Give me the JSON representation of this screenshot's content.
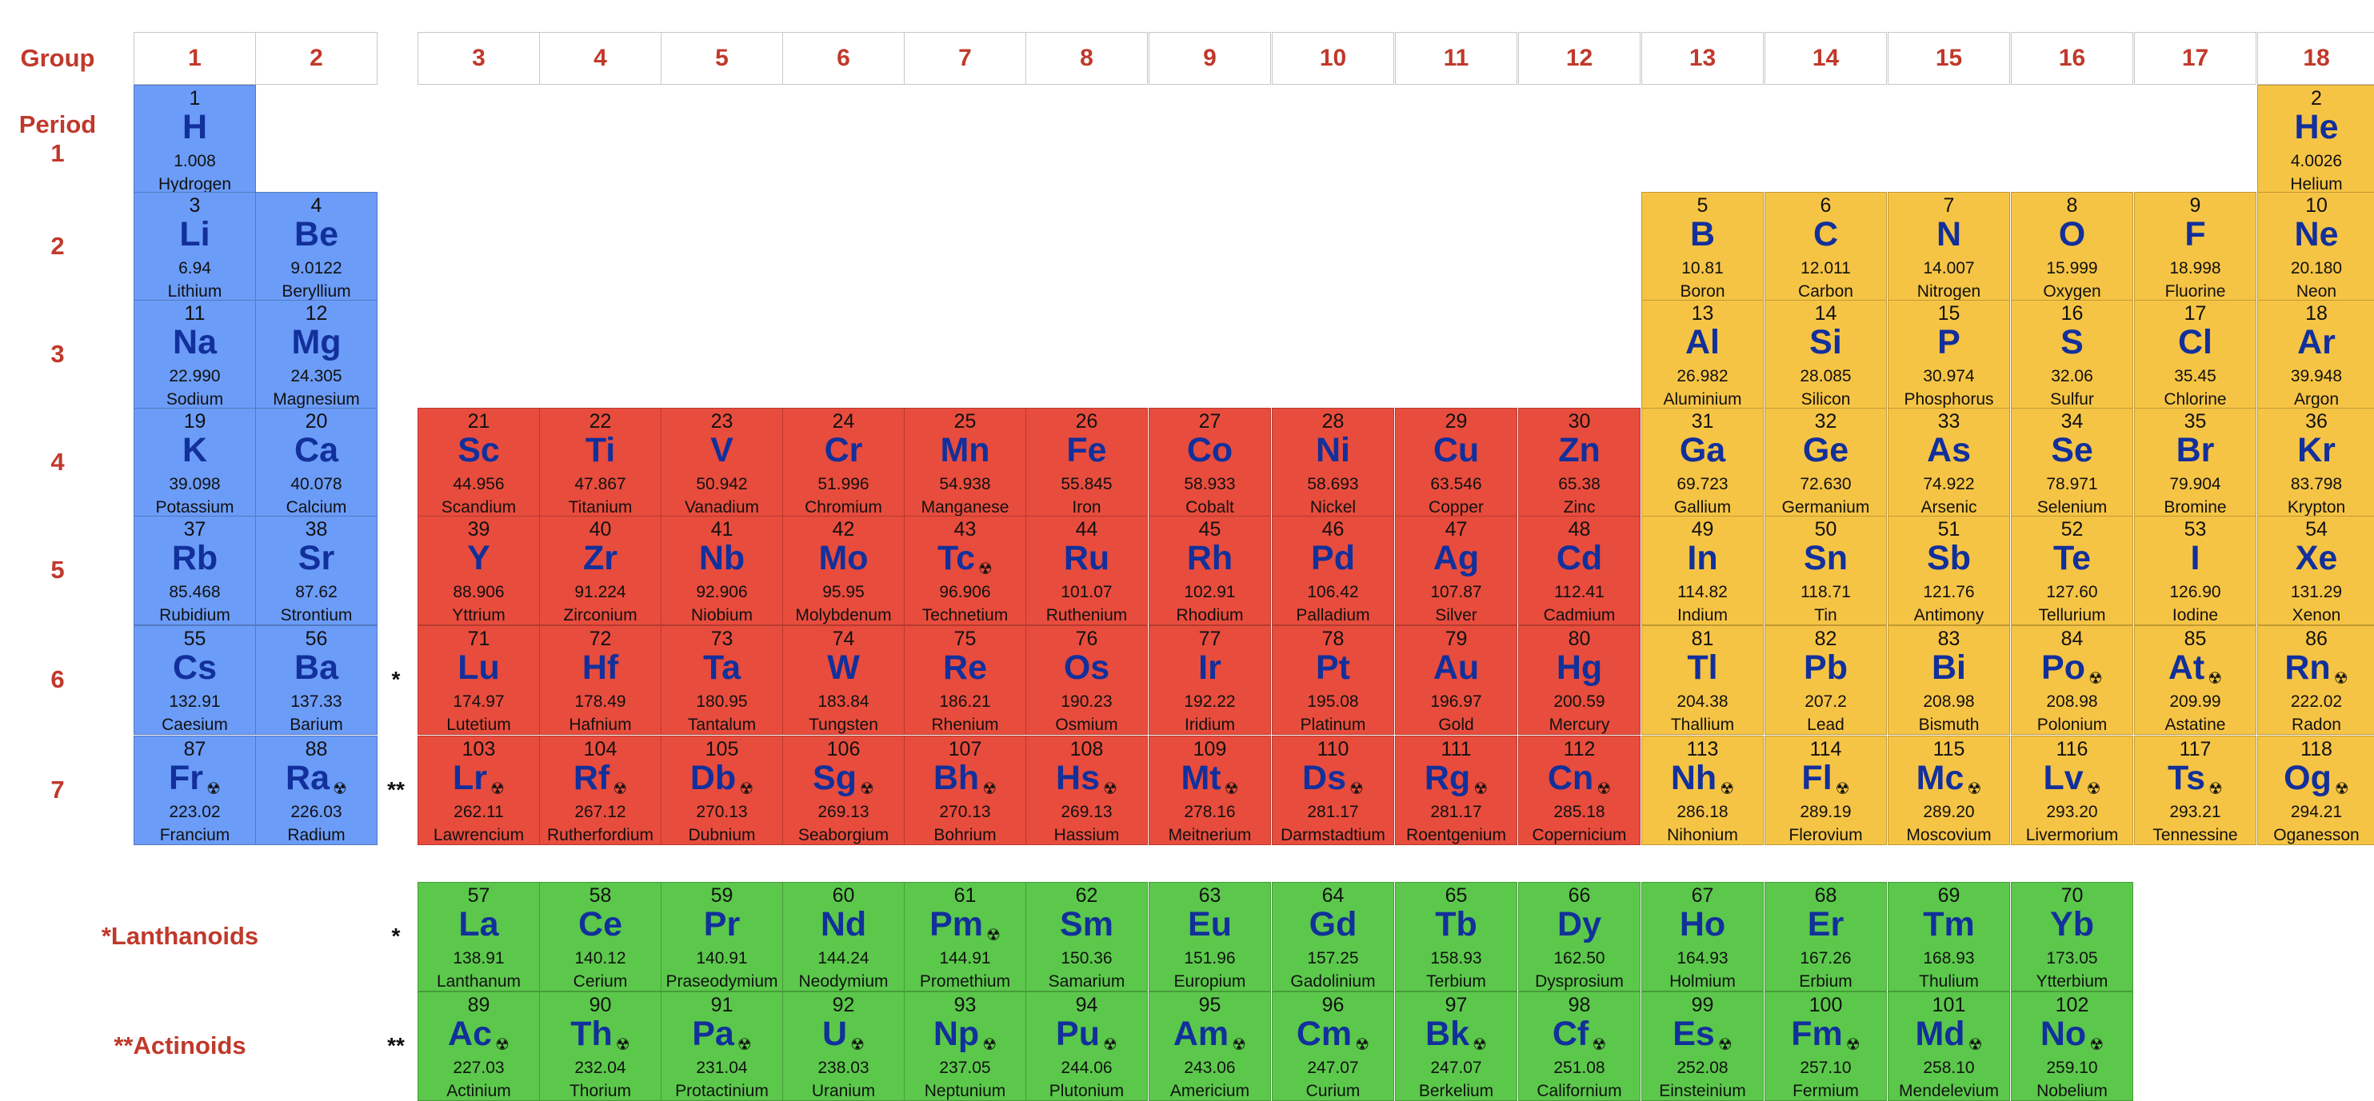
{
  "group_label": "Group",
  "period_label": "Period",
  "groups": [
    "1",
    "2",
    "3",
    "4",
    "5",
    "6",
    "7",
    "8",
    "9",
    "10",
    "11",
    "12",
    "13",
    "14",
    "15",
    "16",
    "17",
    "18"
  ],
  "periods": [
    "1",
    "2",
    "3",
    "4",
    "5",
    "6",
    "7"
  ],
  "lanthanoids_label": "*Lanthanoids",
  "actinoids_label": "**Actinoids",
  "lanthanoid_marker": "*",
  "actinoid_marker": "**",
  "radioactive_icon": "radioactive-icon",
  "colors": {
    "s_block": "#6b9cf8",
    "d_block": "#e84c3d",
    "p_block": "#f6c445",
    "f_block": "#5bc84b",
    "symbol": "#12309b",
    "label": "#c0392b"
  },
  "elements": [
    {
      "z": "1",
      "sym": "H",
      "mass": "1.008",
      "name": "Hydrogen",
      "row": 1,
      "col": 1,
      "block": "s"
    },
    {
      "z": "2",
      "sym": "He",
      "mass": "4.0026",
      "name": "Helium",
      "row": 1,
      "col": 18,
      "block": "p"
    },
    {
      "z": "3",
      "sym": "Li",
      "mass": "6.94",
      "name": "Lithium",
      "row": 2,
      "col": 1,
      "block": "s"
    },
    {
      "z": "4",
      "sym": "Be",
      "mass": "9.0122",
      "name": "Beryllium",
      "row": 2,
      "col": 2,
      "block": "s"
    },
    {
      "z": "5",
      "sym": "B",
      "mass": "10.81",
      "name": "Boron",
      "row": 2,
      "col": 13,
      "block": "p"
    },
    {
      "z": "6",
      "sym": "C",
      "mass": "12.011",
      "name": "Carbon",
      "row": 2,
      "col": 14,
      "block": "p"
    },
    {
      "z": "7",
      "sym": "N",
      "mass": "14.007",
      "name": "Nitrogen",
      "row": 2,
      "col": 15,
      "block": "p"
    },
    {
      "z": "8",
      "sym": "O",
      "mass": "15.999",
      "name": "Oxygen",
      "row": 2,
      "col": 16,
      "block": "p"
    },
    {
      "z": "9",
      "sym": "F",
      "mass": "18.998",
      "name": "Fluorine",
      "row": 2,
      "col": 17,
      "block": "p"
    },
    {
      "z": "10",
      "sym": "Ne",
      "mass": "20.180",
      "name": "Neon",
      "row": 2,
      "col": 18,
      "block": "p"
    },
    {
      "z": "11",
      "sym": "Na",
      "mass": "22.990",
      "name": "Sodium",
      "row": 3,
      "col": 1,
      "block": "s"
    },
    {
      "z": "12",
      "sym": "Mg",
      "mass": "24.305",
      "name": "Magnesium",
      "row": 3,
      "col": 2,
      "block": "s"
    },
    {
      "z": "13",
      "sym": "Al",
      "mass": "26.982",
      "name": "Aluminium",
      "row": 3,
      "col": 13,
      "block": "p"
    },
    {
      "z": "14",
      "sym": "Si",
      "mass": "28.085",
      "name": "Silicon",
      "row": 3,
      "col": 14,
      "block": "p"
    },
    {
      "z": "15",
      "sym": "P",
      "mass": "30.974",
      "name": "Phosphorus",
      "row": 3,
      "col": 15,
      "block": "p"
    },
    {
      "z": "16",
      "sym": "S",
      "mass": "32.06",
      "name": "Sulfur",
      "row": 3,
      "col": 16,
      "block": "p"
    },
    {
      "z": "17",
      "sym": "Cl",
      "mass": "35.45",
      "name": "Chlorine",
      "row": 3,
      "col": 17,
      "block": "p"
    },
    {
      "z": "18",
      "sym": "Ar",
      "mass": "39.948",
      "name": "Argon",
      "row": 3,
      "col": 18,
      "block": "p"
    },
    {
      "z": "19",
      "sym": "K",
      "mass": "39.098",
      "name": "Potassium",
      "row": 4,
      "col": 1,
      "block": "s"
    },
    {
      "z": "20",
      "sym": "Ca",
      "mass": "40.078",
      "name": "Calcium",
      "row": 4,
      "col": 2,
      "block": "s"
    },
    {
      "z": "21",
      "sym": "Sc",
      "mass": "44.956",
      "name": "Scandium",
      "row": 4,
      "col": 3,
      "block": "d"
    },
    {
      "z": "22",
      "sym": "Ti",
      "mass": "47.867",
      "name": "Titanium",
      "row": 4,
      "col": 4,
      "block": "d"
    },
    {
      "z": "23",
      "sym": "V",
      "mass": "50.942",
      "name": "Vanadium",
      "row": 4,
      "col": 5,
      "block": "d"
    },
    {
      "z": "24",
      "sym": "Cr",
      "mass": "51.996",
      "name": "Chromium",
      "row": 4,
      "col": 6,
      "block": "d"
    },
    {
      "z": "25",
      "sym": "Mn",
      "mass": "54.938",
      "name": "Manganese",
      "row": 4,
      "col": 7,
      "block": "d"
    },
    {
      "z": "26",
      "sym": "Fe",
      "mass": "55.845",
      "name": "Iron",
      "row": 4,
      "col": 8,
      "block": "d"
    },
    {
      "z": "27",
      "sym": "Co",
      "mass": "58.933",
      "name": "Cobalt",
      "row": 4,
      "col": 9,
      "block": "d"
    },
    {
      "z": "28",
      "sym": "Ni",
      "mass": "58.693",
      "name": "Nickel",
      "row": 4,
      "col": 10,
      "block": "d"
    },
    {
      "z": "29",
      "sym": "Cu",
      "mass": "63.546",
      "name": "Copper",
      "row": 4,
      "col": 11,
      "block": "d"
    },
    {
      "z": "30",
      "sym": "Zn",
      "mass": "65.38",
      "name": "Zinc",
      "row": 4,
      "col": 12,
      "block": "d"
    },
    {
      "z": "31",
      "sym": "Ga",
      "mass": "69.723",
      "name": "Gallium",
      "row": 4,
      "col": 13,
      "block": "p"
    },
    {
      "z": "32",
      "sym": "Ge",
      "mass": "72.630",
      "name": "Germanium",
      "row": 4,
      "col": 14,
      "block": "p"
    },
    {
      "z": "33",
      "sym": "As",
      "mass": "74.922",
      "name": "Arsenic",
      "row": 4,
      "col": 15,
      "block": "p"
    },
    {
      "z": "34",
      "sym": "Se",
      "mass": "78.971",
      "name": "Selenium",
      "row": 4,
      "col": 16,
      "block": "p"
    },
    {
      "z": "35",
      "sym": "Br",
      "mass": "79.904",
      "name": "Bromine",
      "row": 4,
      "col": 17,
      "block": "p"
    },
    {
      "z": "36",
      "sym": "Kr",
      "mass": "83.798",
      "name": "Krypton",
      "row": 4,
      "col": 18,
      "block": "p"
    },
    {
      "z": "37",
      "sym": "Rb",
      "mass": "85.468",
      "name": "Rubidium",
      "row": 5,
      "col": 1,
      "block": "s"
    },
    {
      "z": "38",
      "sym": "Sr",
      "mass": "87.62",
      "name": "Strontium",
      "row": 5,
      "col": 2,
      "block": "s"
    },
    {
      "z": "39",
      "sym": "Y",
      "mass": "88.906",
      "name": "Yttrium",
      "row": 5,
      "col": 3,
      "block": "d"
    },
    {
      "z": "40",
      "sym": "Zr",
      "mass": "91.224",
      "name": "Zirconium",
      "row": 5,
      "col": 4,
      "block": "d"
    },
    {
      "z": "41",
      "sym": "Nb",
      "mass": "92.906",
      "name": "Niobium",
      "row": 5,
      "col": 5,
      "block": "d"
    },
    {
      "z": "42",
      "sym": "Mo",
      "mass": "95.95",
      "name": "Molybdenum",
      "row": 5,
      "col": 6,
      "block": "d"
    },
    {
      "z": "43",
      "sym": "Tc",
      "mass": "96.906",
      "name": "Technetium",
      "row": 5,
      "col": 7,
      "block": "d",
      "rad": true
    },
    {
      "z": "44",
      "sym": "Ru",
      "mass": "101.07",
      "name": "Ruthenium",
      "row": 5,
      "col": 8,
      "block": "d"
    },
    {
      "z": "45",
      "sym": "Rh",
      "mass": "102.91",
      "name": "Rhodium",
      "row": 5,
      "col": 9,
      "block": "d"
    },
    {
      "z": "46",
      "sym": "Pd",
      "mass": "106.42",
      "name": "Palladium",
      "row": 5,
      "col": 10,
      "block": "d"
    },
    {
      "z": "47",
      "sym": "Ag",
      "mass": "107.87",
      "name": "Silver",
      "row": 5,
      "col": 11,
      "block": "d"
    },
    {
      "z": "48",
      "sym": "Cd",
      "mass": "112.41",
      "name": "Cadmium",
      "row": 5,
      "col": 12,
      "block": "d"
    },
    {
      "z": "49",
      "sym": "In",
      "mass": "114.82",
      "name": "Indium",
      "row": 5,
      "col": 13,
      "block": "p"
    },
    {
      "z": "50",
      "sym": "Sn",
      "mass": "118.71",
      "name": "Tin",
      "row": 5,
      "col": 14,
      "block": "p"
    },
    {
      "z": "51",
      "sym": "Sb",
      "mass": "121.76",
      "name": "Antimony",
      "row": 5,
      "col": 15,
      "block": "p"
    },
    {
      "z": "52",
      "sym": "Te",
      "mass": "127.60",
      "name": "Tellurium",
      "row": 5,
      "col": 16,
      "block": "p"
    },
    {
      "z": "53",
      "sym": "I",
      "mass": "126.90",
      "name": "Iodine",
      "row": 5,
      "col": 17,
      "block": "p"
    },
    {
      "z": "54",
      "sym": "Xe",
      "mass": "131.29",
      "name": "Xenon",
      "row": 5,
      "col": 18,
      "block": "p"
    },
    {
      "z": "55",
      "sym": "Cs",
      "mass": "132.91",
      "name": "Caesium",
      "row": 6,
      "col": 1,
      "block": "s"
    },
    {
      "z": "56",
      "sym": "Ba",
      "mass": "137.33",
      "name": "Barium",
      "row": 6,
      "col": 2,
      "block": "s"
    },
    {
      "z": "71",
      "sym": "Lu",
      "mass": "174.97",
      "name": "Lutetium",
      "row": 6,
      "col": 3,
      "block": "d"
    },
    {
      "z": "72",
      "sym": "Hf",
      "mass": "178.49",
      "name": "Hafnium",
      "row": 6,
      "col": 4,
      "block": "d"
    },
    {
      "z": "73",
      "sym": "Ta",
      "mass": "180.95",
      "name": "Tantalum",
      "row": 6,
      "col": 5,
      "block": "d"
    },
    {
      "z": "74",
      "sym": "W",
      "mass": "183.84",
      "name": "Tungsten",
      "row": 6,
      "col": 6,
      "block": "d"
    },
    {
      "z": "75",
      "sym": "Re",
      "mass": "186.21",
      "name": "Rhenium",
      "row": 6,
      "col": 7,
      "block": "d"
    },
    {
      "z": "76",
      "sym": "Os",
      "mass": "190.23",
      "name": "Osmium",
      "row": 6,
      "col": 8,
      "block": "d"
    },
    {
      "z": "77",
      "sym": "Ir",
      "mass": "192.22",
      "name": "Iridium",
      "row": 6,
      "col": 9,
      "block": "d"
    },
    {
      "z": "78",
      "sym": "Pt",
      "mass": "195.08",
      "name": "Platinum",
      "row": 6,
      "col": 10,
      "block": "d"
    },
    {
      "z": "79",
      "sym": "Au",
      "mass": "196.97",
      "name": "Gold",
      "row": 6,
      "col": 11,
      "block": "d"
    },
    {
      "z": "80",
      "sym": "Hg",
      "mass": "200.59",
      "name": "Mercury",
      "row": 6,
      "col": 12,
      "block": "d"
    },
    {
      "z": "81",
      "sym": "Tl",
      "mass": "204.38",
      "name": "Thallium",
      "row": 6,
      "col": 13,
      "block": "p"
    },
    {
      "z": "82",
      "sym": "Pb",
      "mass": "207.2",
      "name": "Lead",
      "row": 6,
      "col": 14,
      "block": "p"
    },
    {
      "z": "83",
      "sym": "Bi",
      "mass": "208.98",
      "name": "Bismuth",
      "row": 6,
      "col": 15,
      "block": "p"
    },
    {
      "z": "84",
      "sym": "Po",
      "mass": "208.98",
      "name": "Polonium",
      "row": 6,
      "col": 16,
      "block": "p",
      "rad": true
    },
    {
      "z": "85",
      "sym": "At",
      "mass": "209.99",
      "name": "Astatine",
      "row": 6,
      "col": 17,
      "block": "p",
      "rad": true
    },
    {
      "z": "86",
      "sym": "Rn",
      "mass": "222.02",
      "name": "Radon",
      "row": 6,
      "col": 18,
      "block": "p",
      "rad": true
    },
    {
      "z": "87",
      "sym": "Fr",
      "mass": "223.02",
      "name": "Francium",
      "row": 7,
      "col": 1,
      "block": "s",
      "rad": true
    },
    {
      "z": "88",
      "sym": "Ra",
      "mass": "226.03",
      "name": "Radium",
      "row": 7,
      "col": 2,
      "block": "s",
      "rad": true
    },
    {
      "z": "103",
      "sym": "Lr",
      "mass": "262.11",
      "name": "Lawrencium",
      "row": 7,
      "col": 3,
      "block": "d",
      "rad": true
    },
    {
      "z": "104",
      "sym": "Rf",
      "mass": "267.12",
      "name": "Rutherfordium",
      "row": 7,
      "col": 4,
      "block": "d",
      "rad": true
    },
    {
      "z": "105",
      "sym": "Db",
      "mass": "270.13",
      "name": "Dubnium",
      "row": 7,
      "col": 5,
      "block": "d",
      "rad": true
    },
    {
      "z": "106",
      "sym": "Sg",
      "mass": "269.13",
      "name": "Seaborgium",
      "row": 7,
      "col": 6,
      "block": "d",
      "rad": true
    },
    {
      "z": "107",
      "sym": "Bh",
      "mass": "270.13",
      "name": "Bohrium",
      "row": 7,
      "col": 7,
      "block": "d",
      "rad": true
    },
    {
      "z": "108",
      "sym": "Hs",
      "mass": "269.13",
      "name": "Hassium",
      "row": 7,
      "col": 8,
      "block": "d",
      "rad": true
    },
    {
      "z": "109",
      "sym": "Mt",
      "mass": "278.16",
      "name": "Meitnerium",
      "row": 7,
      "col": 9,
      "block": "d",
      "rad": true
    },
    {
      "z": "110",
      "sym": "Ds",
      "mass": "281.17",
      "name": "Darmstadtium",
      "row": 7,
      "col": 10,
      "block": "d",
      "rad": true
    },
    {
      "z": "111",
      "sym": "Rg",
      "mass": "281.17",
      "name": "Roentgenium",
      "row": 7,
      "col": 11,
      "block": "d",
      "rad": true
    },
    {
      "z": "112",
      "sym": "Cn",
      "mass": "285.18",
      "name": "Copernicium",
      "row": 7,
      "col": 12,
      "block": "d",
      "rad": true
    },
    {
      "z": "113",
      "sym": "Nh",
      "mass": "286.18",
      "name": "Nihonium",
      "row": 7,
      "col": 13,
      "block": "p",
      "rad": true
    },
    {
      "z": "114",
      "sym": "Fl",
      "mass": "289.19",
      "name": "Flerovium",
      "row": 7,
      "col": 14,
      "block": "p",
      "rad": true
    },
    {
      "z": "115",
      "sym": "Mc",
      "mass": "289.20",
      "name": "Moscovium",
      "row": 7,
      "col": 15,
      "block": "p",
      "rad": true
    },
    {
      "z": "116",
      "sym": "Lv",
      "mass": "293.20",
      "name": "Livermorium",
      "row": 7,
      "col": 16,
      "block": "p",
      "rad": true
    },
    {
      "z": "117",
      "sym": "Ts",
      "mass": "293.21",
      "name": "Tennessine",
      "row": 7,
      "col": 17,
      "block": "p",
      "rad": true
    },
    {
      "z": "118",
      "sym": "Og",
      "mass": "294.21",
      "name": "Oganesson",
      "row": 7,
      "col": 18,
      "block": "p",
      "rad": true
    },
    {
      "z": "57",
      "sym": "La",
      "mass": "138.91",
      "name": "Lanthanum",
      "row": 8,
      "col": 3,
      "block": "f"
    },
    {
      "z": "58",
      "sym": "Ce",
      "mass": "140.12",
      "name": "Cerium",
      "row": 8,
      "col": 4,
      "block": "f"
    },
    {
      "z": "59",
      "sym": "Pr",
      "mass": "140.91",
      "name": "Praseodymium",
      "row": 8,
      "col": 5,
      "block": "f"
    },
    {
      "z": "60",
      "sym": "Nd",
      "mass": "144.24",
      "name": "Neodymium",
      "row": 8,
      "col": 6,
      "block": "f"
    },
    {
      "z": "61",
      "sym": "Pm",
      "mass": "144.91",
      "name": "Promethium",
      "row": 8,
      "col": 7,
      "block": "f",
      "rad": true
    },
    {
      "z": "62",
      "sym": "Sm",
      "mass": "150.36",
      "name": "Samarium",
      "row": 8,
      "col": 8,
      "block": "f"
    },
    {
      "z": "63",
      "sym": "Eu",
      "mass": "151.96",
      "name": "Europium",
      "row": 8,
      "col": 9,
      "block": "f"
    },
    {
      "z": "64",
      "sym": "Gd",
      "mass": "157.25",
      "name": "Gadolinium",
      "row": 8,
      "col": 10,
      "block": "f"
    },
    {
      "z": "65",
      "sym": "Tb",
      "mass": "158.93",
      "name": "Terbium",
      "row": 8,
      "col": 11,
      "block": "f"
    },
    {
      "z": "66",
      "sym": "Dy",
      "mass": "162.50",
      "name": "Dysprosium",
      "row": 8,
      "col": 12,
      "block": "f"
    },
    {
      "z": "67",
      "sym": "Ho",
      "mass": "164.93",
      "name": "Holmium",
      "row": 8,
      "col": 13,
      "block": "f"
    },
    {
      "z": "68",
      "sym": "Er",
      "mass": "167.26",
      "name": "Erbium",
      "row": 8,
      "col": 14,
      "block": "f"
    },
    {
      "z": "69",
      "sym": "Tm",
      "mass": "168.93",
      "name": "Thulium",
      "row": 8,
      "col": 15,
      "block": "f"
    },
    {
      "z": "70",
      "sym": "Yb",
      "mass": "173.05",
      "name": "Ytterbium",
      "row": 8,
      "col": 16,
      "block": "f"
    },
    {
      "z": "89",
      "sym": "Ac",
      "mass": "227.03",
      "name": "Actinium",
      "row": 9,
      "col": 3,
      "block": "f",
      "rad": true
    },
    {
      "z": "90",
      "sym": "Th",
      "mass": "232.04",
      "name": "Thorium",
      "row": 9,
      "col": 4,
      "block": "f",
      "rad": true
    },
    {
      "z": "91",
      "sym": "Pa",
      "mass": "231.04",
      "name": "Protactinium",
      "row": 9,
      "col": 5,
      "block": "f",
      "rad": true
    },
    {
      "z": "92",
      "sym": "U",
      "mass": "238.03",
      "name": "Uranium",
      "row": 9,
      "col": 6,
      "block": "f",
      "rad": true
    },
    {
      "z": "93",
      "sym": "Np",
      "mass": "237.05",
      "name": "Neptunium",
      "row": 9,
      "col": 7,
      "block": "f",
      "rad": true
    },
    {
      "z": "94",
      "sym": "Pu",
      "mass": "244.06",
      "name": "Plutonium",
      "row": 9,
      "col": 8,
      "block": "f",
      "rad": true
    },
    {
      "z": "95",
      "sym": "Am",
      "mass": "243.06",
      "name": "Americium",
      "row": 9,
      "col": 9,
      "block": "f",
      "rad": true
    },
    {
      "z": "96",
      "sym": "Cm",
      "mass": "247.07",
      "name": "Curium",
      "row": 9,
      "col": 10,
      "block": "f",
      "rad": true
    },
    {
      "z": "97",
      "sym": "Bk",
      "mass": "247.07",
      "name": "Berkelium",
      "row": 9,
      "col": 11,
      "block": "f",
      "rad": true
    },
    {
      "z": "98",
      "sym": "Cf",
      "mass": "251.08",
      "name": "Californium",
      "row": 9,
      "col": 12,
      "block": "f",
      "rad": true
    },
    {
      "z": "99",
      "sym": "Es",
      "mass": "252.08",
      "name": "Einsteinium",
      "row": 9,
      "col": 13,
      "block": "f",
      "rad": true
    },
    {
      "z": "100",
      "sym": "Fm",
      "mass": "257.10",
      "name": "Fermium",
      "row": 9,
      "col": 14,
      "block": "f",
      "rad": true
    },
    {
      "z": "101",
      "sym": "Md",
      "mass": "258.10",
      "name": "Mendelevium",
      "row": 9,
      "col": 15,
      "block": "f",
      "rad": true
    },
    {
      "z": "102",
      "sym": "No",
      "mass": "259.10",
      "name": "Nobelium",
      "row": 9,
      "col": 16,
      "block": "f",
      "rad": true
    }
  ]
}
